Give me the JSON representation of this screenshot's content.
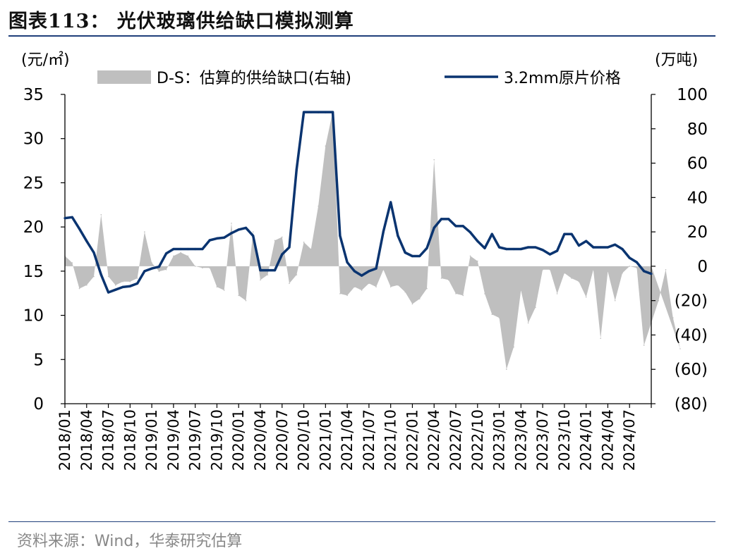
{
  "title": "图表113：  光伏玻璃供给缺口模拟测算",
  "source": "资料来源：Wind，华泰研究估算",
  "chart_data": {
    "type": "bar+line",
    "left_unit": "(元/㎡)",
    "right_unit": "(万吨)",
    "left_axis": {
      "min": 0,
      "max": 35,
      "ticks": [
        "0",
        "5",
        "10",
        "15",
        "20",
        "25",
        "30",
        "35"
      ]
    },
    "right_axis": {
      "min": -80,
      "max": 100,
      "ticks": [
        "(80)",
        "(60)",
        "(40)",
        "(20)",
        "0",
        "20",
        "40",
        "60",
        "80",
        "100"
      ]
    },
    "x_tick_labels": [
      "2018/01",
      "2018/04",
      "2018/07",
      "2018/10",
      "2019/01",
      "2019/04",
      "2019/07",
      "2019/10",
      "2020/01",
      "2020/04",
      "2020/07",
      "2020/10",
      "2021/01",
      "2021/04",
      "2021/07",
      "2021/10",
      "2022/01",
      "2022/04",
      "2022/07",
      "2022/10",
      "2023/01",
      "2023/04",
      "2023/07",
      "2023/10",
      "2024/01",
      "2024/04",
      "2024/07"
    ],
    "legend": [
      {
        "name": "D-S：估算的供给缺口(右轴)",
        "type": "area",
        "color": "#bfbfbf"
      },
      {
        "name": "3.2mm原片价格",
        "type": "line",
        "color": "#0a3470"
      }
    ],
    "series": [
      {
        "name": "D-S：估算的供给缺口(右轴)",
        "axis": "right",
        "values": [
          6,
          2,
          -13,
          -11,
          -6,
          30,
          -6,
          -11,
          -9,
          -9,
          -7,
          20,
          2,
          -3,
          -2,
          6,
          8,
          6,
          0,
          -1,
          -1,
          -12,
          -14,
          25,
          -17,
          -20,
          20,
          -8,
          -5,
          15,
          17,
          -10,
          -5,
          14,
          10,
          35,
          70,
          90,
          -16,
          -17,
          -12,
          -14,
          -10,
          -12,
          -2,
          -12,
          -11,
          -15,
          -22,
          -19,
          -13,
          62,
          -7,
          -8,
          -16,
          -17,
          6,
          3,
          -16,
          -28,
          -30,
          -60,
          -47,
          -14,
          -33,
          -24,
          -2,
          -2,
          -16,
          -4,
          -7,
          -9,
          -18,
          -2,
          -42,
          -3,
          -20,
          -4,
          0,
          -1,
          -46,
          -33,
          -20,
          -2,
          -30,
          -48
        ]
      },
      {
        "name": "3.2mm原片价格",
        "axis": "left",
        "values": [
          21,
          21.1,
          19.8,
          18.4,
          17.1,
          14.6,
          12.6,
          12.9,
          13.2,
          13.3,
          13.6,
          15,
          15.3,
          15.5,
          17,
          17.5,
          17.5,
          17.5,
          17.5,
          17.5,
          18.5,
          18.7,
          18.8,
          19.3,
          19.7,
          19.9,
          19,
          15.1,
          15.1,
          15.1,
          16.9,
          17.7,
          26.5,
          33,
          33,
          33,
          33,
          33,
          19,
          16,
          15,
          14.5,
          15,
          15.3,
          19.5,
          22.8,
          19,
          17.1,
          16.7,
          16.7,
          17.6,
          19.9,
          20.9,
          20.9,
          20.1,
          20.1,
          19.4,
          18.4,
          17.6,
          19.2,
          17.7,
          17.5,
          17.5,
          17.5,
          17.7,
          17.7,
          17.4,
          16.9,
          17.3,
          19.2,
          19.2,
          17.9,
          18.4,
          17.7,
          17.7,
          17.7,
          18,
          17.5,
          16.5,
          16,
          15,
          14.7
        ]
      }
    ]
  }
}
